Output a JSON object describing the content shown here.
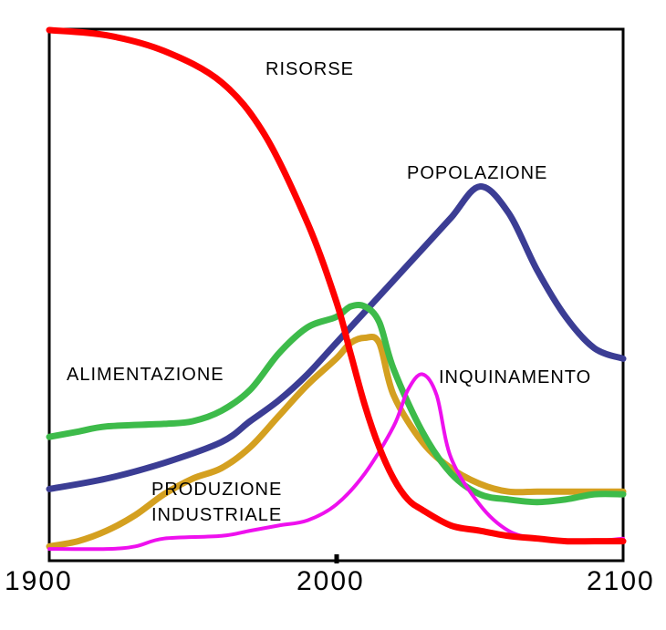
{
  "chart_data": {
    "type": "line",
    "title": "",
    "xlabel": "",
    "ylabel": "",
    "xlim": [
      1900,
      2100
    ],
    "ylim": [
      0,
      1
    ],
    "x_ticks": [
      "1900",
      "2000",
      "2100"
    ],
    "grid": false,
    "legend": "none",
    "series": [
      {
        "name": "RISORSE",
        "color": "#ff0000",
        "points": [
          [
            1900,
            1.0
          ],
          [
            1920,
            0.99
          ],
          [
            1940,
            0.96
          ],
          [
            1960,
            0.9
          ],
          [
            1975,
            0.8
          ],
          [
            1990,
            0.63
          ],
          [
            2000,
            0.48
          ],
          [
            2005,
            0.38
          ],
          [
            2010,
            0.28
          ],
          [
            2015,
            0.2
          ],
          [
            2020,
            0.14
          ],
          [
            2025,
            0.1
          ],
          [
            2030,
            0.08
          ],
          [
            2040,
            0.05
          ],
          [
            2050,
            0.04
          ],
          [
            2060,
            0.03
          ],
          [
            2070,
            0.025
          ],
          [
            2080,
            0.02
          ],
          [
            2090,
            0.02
          ],
          [
            2100,
            0.02
          ]
        ]
      },
      {
        "name": "POPOLAZIONE",
        "color": "#3b3d94",
        "points": [
          [
            1900,
            0.12
          ],
          [
            1920,
            0.14
          ],
          [
            1940,
            0.17
          ],
          [
            1960,
            0.21
          ],
          [
            1970,
            0.25
          ],
          [
            1980,
            0.29
          ],
          [
            1990,
            0.34
          ],
          [
            2000,
            0.4
          ],
          [
            2010,
            0.46
          ],
          [
            2020,
            0.52
          ],
          [
            2030,
            0.58
          ],
          [
            2040,
            0.64
          ],
          [
            2050,
            0.7
          ],
          [
            2060,
            0.65
          ],
          [
            2070,
            0.54
          ],
          [
            2080,
            0.45
          ],
          [
            2090,
            0.39
          ],
          [
            2100,
            0.37
          ]
        ]
      },
      {
        "name": "ALIMENTAZIONE",
        "color": "#3dbb4a",
        "points": [
          [
            1900,
            0.22
          ],
          [
            1910,
            0.23
          ],
          [
            1920,
            0.24
          ],
          [
            1940,
            0.245
          ],
          [
            1950,
            0.25
          ],
          [
            1960,
            0.27
          ],
          [
            1970,
            0.31
          ],
          [
            1980,
            0.38
          ],
          [
            1990,
            0.43
          ],
          [
            2000,
            0.45
          ],
          [
            2005,
            0.47
          ],
          [
            2010,
            0.47
          ],
          [
            2015,
            0.44
          ],
          [
            2020,
            0.35
          ],
          [
            2030,
            0.23
          ],
          [
            2040,
            0.15
          ],
          [
            2050,
            0.11
          ],
          [
            2060,
            0.1
          ],
          [
            2070,
            0.095
          ],
          [
            2080,
            0.1
          ],
          [
            2090,
            0.11
          ],
          [
            2100,
            0.11
          ]
        ]
      },
      {
        "name": "PRODUZIONE INDUSTRIALE",
        "color": "#d4a020",
        "points": [
          [
            1900,
            0.01
          ],
          [
            1910,
            0.02
          ],
          [
            1920,
            0.04
          ],
          [
            1930,
            0.07
          ],
          [
            1940,
            0.11
          ],
          [
            1950,
            0.14
          ],
          [
            1960,
            0.16
          ],
          [
            1970,
            0.2
          ],
          [
            1980,
            0.26
          ],
          [
            1990,
            0.32
          ],
          [
            2000,
            0.37
          ],
          [
            2005,
            0.4
          ],
          [
            2010,
            0.41
          ],
          [
            2015,
            0.4
          ],
          [
            2020,
            0.3
          ],
          [
            2030,
            0.21
          ],
          [
            2040,
            0.16
          ],
          [
            2050,
            0.13
          ],
          [
            2060,
            0.115
          ],
          [
            2070,
            0.115
          ],
          [
            2080,
            0.115
          ],
          [
            2090,
            0.115
          ],
          [
            2100,
            0.115
          ]
        ]
      },
      {
        "name": "INQUINAMENTO",
        "color": "#ee10ee",
        "points": [
          [
            1900,
            0.005
          ],
          [
            1920,
            0.005
          ],
          [
            1930,
            0.01
          ],
          [
            1940,
            0.025
          ],
          [
            1960,
            0.03
          ],
          [
            1970,
            0.04
          ],
          [
            1980,
            0.05
          ],
          [
            1990,
            0.06
          ],
          [
            2000,
            0.09
          ],
          [
            2010,
            0.15
          ],
          [
            2020,
            0.24
          ],
          [
            2025,
            0.31
          ],
          [
            2030,
            0.34
          ],
          [
            2035,
            0.3
          ],
          [
            2040,
            0.18
          ],
          [
            2050,
            0.09
          ],
          [
            2060,
            0.04
          ],
          [
            2070,
            0.025
          ],
          [
            2080,
            0.02
          ],
          [
            2090,
            0.02
          ],
          [
            2100,
            0.025
          ]
        ]
      }
    ],
    "labels": {
      "risorse": "RISORSE",
      "popolazione": "POPOLAZIONE",
      "alimentazione": "ALIMENTAZIONE",
      "produzione_1": "PRODUZIONE",
      "produzione_2": "INDUSTRIALE",
      "inquinamento": "INQUINAMENTO"
    }
  }
}
